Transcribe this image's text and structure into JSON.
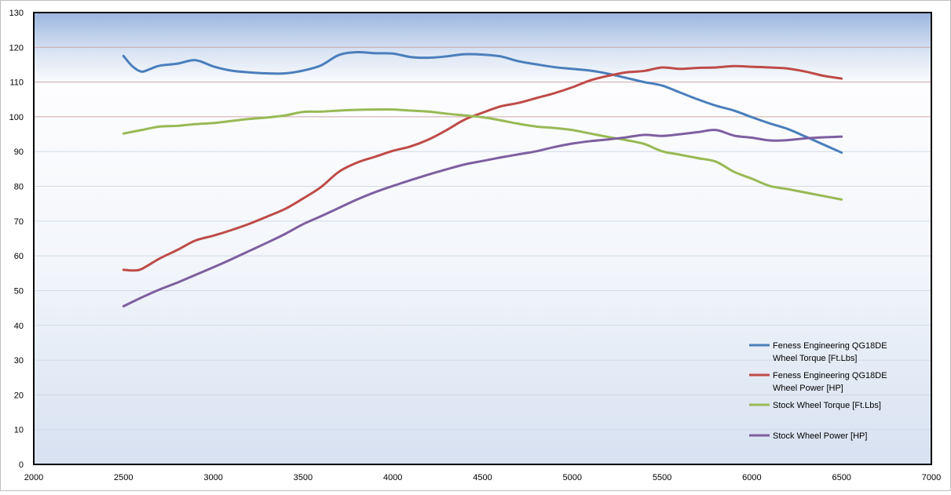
{
  "chart_data": {
    "type": "line",
    "title": "",
    "xlabel": "",
    "ylabel": "",
    "xlim": [
      2000,
      7000
    ],
    "ylim": [
      0,
      130
    ],
    "x_ticks": [
      2000,
      2500,
      3000,
      3500,
      4000,
      4500,
      5000,
      5500,
      6000,
      6500,
      7000
    ],
    "y_ticks": [
      0,
      10,
      20,
      30,
      40,
      50,
      60,
      70,
      80,
      90,
      100,
      110,
      120,
      130
    ],
    "grid": true,
    "legend_position": "bottom-right",
    "series": [
      {
        "name": "Feness Engineering QG18DE Wheel Torque [Ft.Lbs]",
        "legend_lines": [
          "Feness Engineering QG18DE",
          "Wheel Torque [Ft.Lbs]"
        ],
        "color": "#4A7EBB",
        "x": [
          2500,
          2550,
          2600,
          2650,
          2700,
          2800,
          2900,
          3000,
          3100,
          3200,
          3300,
          3400,
          3500,
          3600,
          3700,
          3800,
          3900,
          4000,
          4100,
          4200,
          4300,
          4400,
          4500,
          4600,
          4700,
          4800,
          4900,
          5000,
          5100,
          5200,
          5300,
          5400,
          5500,
          5600,
          5700,
          5800,
          5900,
          6000,
          6100,
          6200,
          6300,
          6400,
          6500
        ],
        "y": [
          117.5,
          114.5,
          113,
          113.8,
          114.7,
          115.3,
          116.3,
          114.5,
          113.3,
          112.8,
          112.5,
          112.5,
          113.3,
          114.8,
          117.8,
          118.6,
          118.3,
          118.2,
          117.2,
          117,
          117.4,
          118,
          117.9,
          117.4,
          116,
          115.1,
          114.3,
          113.8,
          113.3,
          112.4,
          111.2,
          110,
          109,
          107,
          105,
          103.2,
          101.8,
          99.9,
          98.1,
          96.5,
          94.3,
          92,
          89.7
        ]
      },
      {
        "name": "Feness Engineering QG18DE Wheel Power [HP]",
        "legend_lines": [
          "Feness Engineering QG18DE",
          "Wheel Power [HP]"
        ],
        "color": "#BE4B48",
        "x": [
          2500,
          2550,
          2600,
          2700,
          2800,
          2900,
          3000,
          3100,
          3200,
          3300,
          3400,
          3500,
          3600,
          3700,
          3800,
          3900,
          4000,
          4100,
          4200,
          4300,
          4400,
          4500,
          4600,
          4700,
          4800,
          4900,
          5000,
          5100,
          5200,
          5300,
          5400,
          5500,
          5600,
          5700,
          5800,
          5900,
          6000,
          6100,
          6200,
          6300,
          6400,
          6500
        ],
        "y": [
          56,
          55.8,
          56.2,
          59.2,
          61.7,
          64.4,
          65.8,
          67.4,
          69.2,
          71.3,
          73.5,
          76.5,
          79.8,
          84.2,
          86.8,
          88.5,
          90.2,
          91.5,
          93.5,
          96.2,
          99.2,
          101.2,
          103,
          104,
          105.4,
          106.8,
          108.5,
          110.5,
          111.8,
          112.8,
          113.2,
          114.2,
          113.8,
          114.1,
          114.2,
          114.6,
          114.4,
          114.2,
          113.9,
          113,
          111.8,
          111
        ]
      },
      {
        "name": "Stock Wheel Torque [Ft.Lbs]",
        "legend_lines": [
          "Stock Wheel Torque [Ft.Lbs]"
        ],
        "color": "#98B954",
        "x": [
          2500,
          2600,
          2700,
          2800,
          2900,
          3000,
          3100,
          3200,
          3300,
          3400,
          3500,
          3600,
          3700,
          3800,
          3900,
          4000,
          4100,
          4200,
          4300,
          4400,
          4500,
          4600,
          4700,
          4800,
          4900,
          5000,
          5100,
          5200,
          5300,
          5400,
          5500,
          5600,
          5700,
          5800,
          5900,
          6000,
          6100,
          6200,
          6300,
          6400,
          6500
        ],
        "y": [
          95.2,
          96.2,
          97.2,
          97.4,
          97.9,
          98.2,
          98.8,
          99.4,
          99.8,
          100.4,
          101.4,
          101.5,
          101.8,
          102,
          102.1,
          102.1,
          101.8,
          101.5,
          100.9,
          100.4,
          99.9,
          99,
          98,
          97.2,
          96.8,
          96.2,
          95.2,
          94.2,
          93.3,
          92.2,
          90.1,
          89.1,
          88.1,
          87.1,
          84.2,
          82.2,
          80.1,
          79.2,
          78.2,
          77.2,
          76.2
        ]
      },
      {
        "name": "Stock Wheel Power [HP]",
        "legend_lines": [
          "Stock Wheel Power [HP]"
        ],
        "color": "#7D5FA0",
        "x": [
          2500,
          2600,
          2700,
          2800,
          2900,
          3000,
          3100,
          3200,
          3300,
          3400,
          3500,
          3600,
          3700,
          3800,
          3900,
          4000,
          4100,
          4200,
          4300,
          4400,
          4500,
          4600,
          4700,
          4800,
          4900,
          5000,
          5100,
          5200,
          5300,
          5400,
          5500,
          5600,
          5700,
          5800,
          5900,
          6000,
          6100,
          6200,
          6300,
          6400,
          6500
        ],
        "y": [
          45.5,
          48,
          50.3,
          52.3,
          54.5,
          56.7,
          59,
          61.4,
          63.8,
          66.3,
          69.1,
          71.4,
          73.8,
          76.2,
          78.3,
          80.1,
          81.8,
          83.4,
          84.9,
          86.3,
          87.3,
          88.3,
          89.2,
          90.1,
          91.3,
          92.3,
          93,
          93.5,
          94.1,
          94.8,
          94.5,
          95,
          95.6,
          96.2,
          94.6,
          94,
          93.2,
          93.3,
          93.8,
          94.1,
          94.3
        ]
      }
    ]
  }
}
